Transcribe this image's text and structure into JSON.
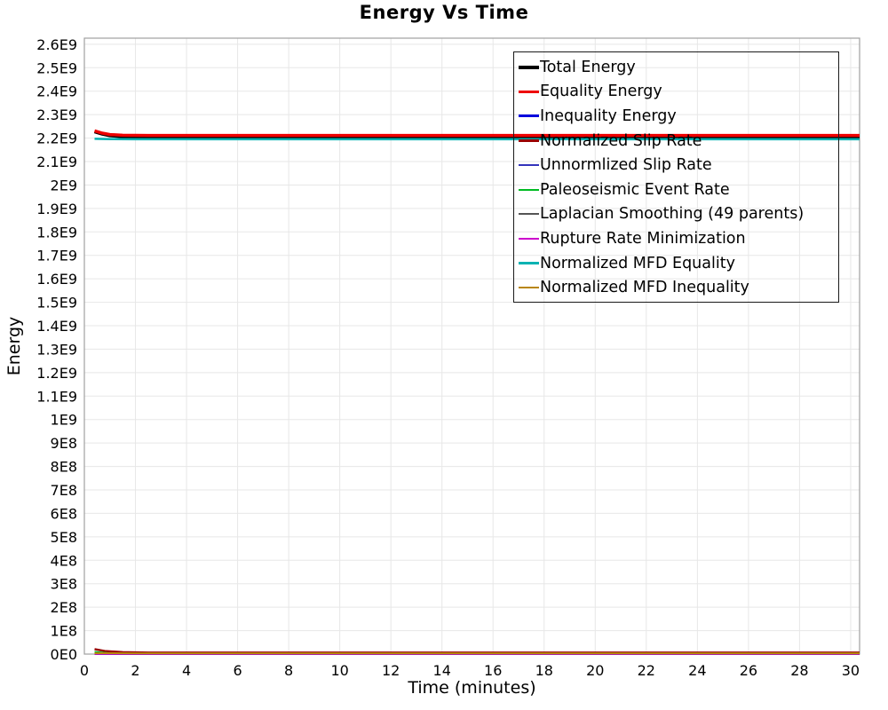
{
  "title": "Energy Vs Time",
  "axes": {
    "x_label": "Time (minutes)",
    "y_label": "Energy",
    "x_ticks": [
      0,
      2,
      4,
      6,
      8,
      10,
      12,
      14,
      16,
      18,
      20,
      22,
      24,
      26,
      28,
      30
    ],
    "y_ticks": [
      "0E0",
      "1E8",
      "2E8",
      "3E8",
      "4E8",
      "5E8",
      "6E8",
      "7E8",
      "8E8",
      "9E8",
      "1E9",
      "1.1E9",
      "1.2E9",
      "1.3E9",
      "1.4E9",
      "1.5E9",
      "1.6E9",
      "1.7E9",
      "1.8E9",
      "1.9E9",
      "2E9",
      "2.1E9",
      "2.2E9",
      "2.3E9",
      "2.4E9",
      "2.5E9",
      "2.6E9"
    ]
  },
  "colors": {
    "grid": "#e7e7e7",
    "plot_border": "#a0a0a0",
    "background": "#ffffff"
  },
  "legend": {
    "entries": [
      {
        "label": "Total Energy",
        "color": "#000000",
        "thickness": 4
      },
      {
        "label": "Equality Energy",
        "color": "#ee0000",
        "thickness": 3.5
      },
      {
        "label": "Inequality Energy",
        "color": "#0000dd",
        "thickness": 3
      },
      {
        "label": "Normalized Slip Rate",
        "color": "#990000",
        "thickness": 3
      },
      {
        "label": "Unnormlized Slip Rate",
        "color": "#3333bb",
        "thickness": 2
      },
      {
        "label": "Paleoseismic Event Rate",
        "color": "#00bb22",
        "thickness": 2
      },
      {
        "label": "Laplacian Smoothing (49 parents)",
        "color": "#555555",
        "thickness": 2
      },
      {
        "label": "Rupture Rate Minimization",
        "color": "#cc00cc",
        "thickness": 2
      },
      {
        "label": "Normalized MFD Equality",
        "color": "#00b2b2",
        "thickness": 2.5
      },
      {
        "label": "Normalized MFD Inequality",
        "color": "#b8860b",
        "thickness": 2.5
      }
    ]
  },
  "chart_data": {
    "type": "line",
    "title": "Energy Vs Time",
    "xlabel": "Time (minutes)",
    "ylabel": "Energy",
    "xlim": [
      0,
      30.35
    ],
    "ylim": [
      0,
      2626000000.0
    ],
    "x_tick_step": 2,
    "y_tick_step": 100000000.0,
    "grid": true,
    "legend_position": "top-right",
    "series": [
      {
        "name": "Total Energy",
        "color": "#000000",
        "width": 4,
        "points": [
          [
            0.4,
            2228000000.0
          ],
          [
            0.7,
            2218000000.0
          ],
          [
            1.0,
            2211000000.0
          ],
          [
            1.5,
            2207000000.0
          ],
          [
            2.5,
            2206000000.0
          ],
          [
            30.35,
            2206000000.0
          ]
        ]
      },
      {
        "name": "Equality Energy",
        "color": "#ee0000",
        "width": 3.5,
        "points": [
          [
            0.4,
            2231000000.0
          ],
          [
            0.7,
            2221000000.0
          ],
          [
            1.0,
            2215000000.0
          ],
          [
            1.5,
            2212000000.0
          ],
          [
            2.5,
            2211000000.0
          ],
          [
            30.35,
            2211000000.0
          ]
        ]
      },
      {
        "name": "Inequality Energy",
        "color": "#0000dd",
        "width": 2.5,
        "points": [
          [
            0.4,
            1200000.0
          ],
          [
            30.35,
            1200000.0
          ]
        ]
      },
      {
        "name": "Normalized Slip Rate",
        "color": "#990000",
        "width": 2.5,
        "points": [
          [
            0.4,
            21000000.0
          ],
          [
            0.8,
            13000000.0
          ],
          [
            1.5,
            8000000.0
          ],
          [
            2.5,
            6000000.0
          ],
          [
            30.35,
            6000000.0
          ]
        ]
      },
      {
        "name": "Unnormlized Slip Rate",
        "color": "#3333bb",
        "width": 2,
        "points": [
          [
            0.4,
            3000000.0
          ],
          [
            1.5,
            1500000.0
          ],
          [
            30.35,
            1500000.0
          ]
        ]
      },
      {
        "name": "Paleoseismic Event Rate",
        "color": "#00bb22",
        "width": 2,
        "points": [
          [
            0.4,
            9000000.0
          ],
          [
            1.0,
            4000000.0
          ],
          [
            2.0,
            2500000.0
          ],
          [
            30.35,
            2500000.0
          ]
        ]
      },
      {
        "name": "Laplacian Smoothing (49 parents)",
        "color": "#555555",
        "width": 2,
        "points": [
          [
            0.4,
            1000000.0
          ],
          [
            30.35,
            1000000.0
          ]
        ]
      },
      {
        "name": "Rupture Rate Minimization",
        "color": "#cc00cc",
        "width": 2,
        "points": [
          [
            0.4,
            800000.0
          ],
          [
            30.35,
            800000.0
          ]
        ]
      },
      {
        "name": "Normalized MFD Equality",
        "color": "#00b2b2",
        "width": 2.5,
        "points": [
          [
            0.4,
            2197000000.0
          ],
          [
            1.0,
            2195500000.0
          ],
          [
            2.0,
            2195000000.0
          ],
          [
            30.35,
            2195000000.0
          ]
        ]
      },
      {
        "name": "Normalized MFD Inequality",
        "color": "#b8860b",
        "width": 2,
        "points": [
          [
            0.4,
            4000000.0
          ],
          [
            2.0,
            3500000.0
          ],
          [
            30.35,
            3500000.0
          ]
        ]
      }
    ]
  }
}
